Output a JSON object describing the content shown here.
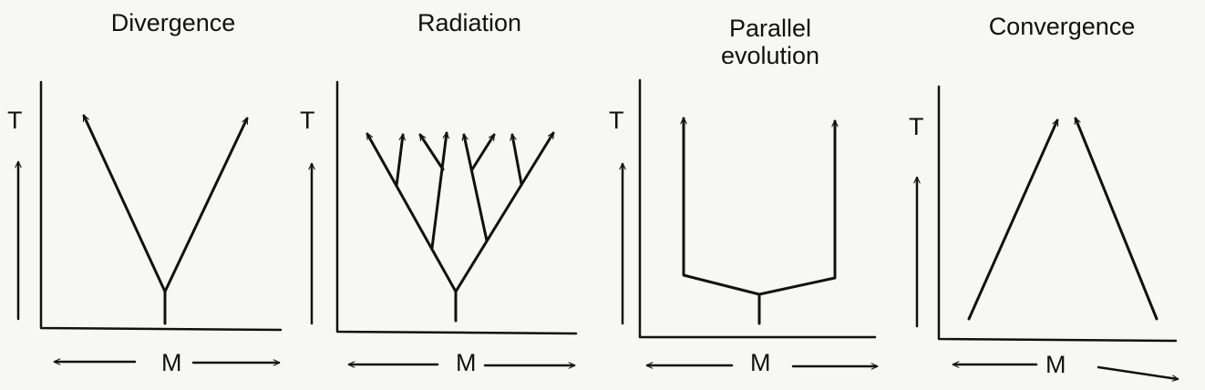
{
  "panels": [
    {
      "title": "Divergence",
      "y_axis_label": "T",
      "x_axis_label": "M"
    },
    {
      "title": "Radiation",
      "y_axis_label": "T",
      "x_axis_label": "M"
    },
    {
      "title": "Parallel\nevolution",
      "y_axis_label": "T",
      "x_axis_label": "M"
    },
    {
      "title": "Convergence",
      "y_axis_label": "T",
      "x_axis_label": "M"
    }
  ],
  "colors": {
    "ink": "#111111",
    "paper": "#f7f7f5"
  }
}
